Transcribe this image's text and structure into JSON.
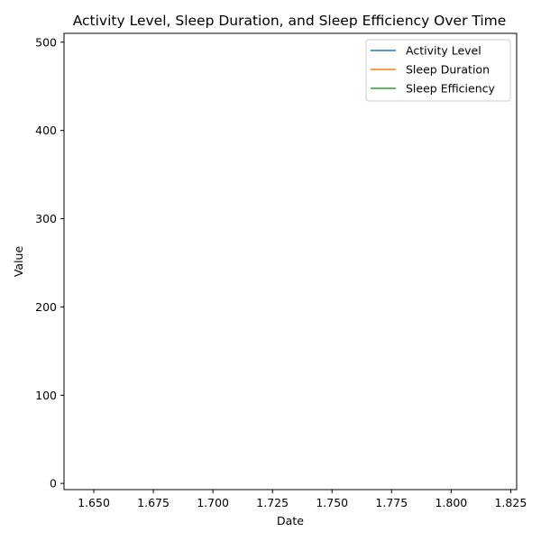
{
  "chart_data": {
    "type": "line",
    "title": "Activity Level, Sleep Duration, and Sleep Efficiency Over Time",
    "xlabel": "Date",
    "ylabel": "Value",
    "xlim": [
      1.6375,
      1.8275
    ],
    "ylim": [
      -7,
      510
    ],
    "x_ticks": [
      1.65,
      1.675,
      1.7,
      1.725,
      1.75,
      1.775,
      1.8,
      1.825
    ],
    "x_tick_labels": [
      "1.650",
      "1.675",
      "1.700",
      "1.725",
      "1.750",
      "1.775",
      "1.800",
      "1.825"
    ],
    "y_ticks": [
      0,
      100,
      200,
      300,
      400,
      500
    ],
    "y_tick_labels": [
      "0",
      "100",
      "200",
      "300",
      "400",
      "500"
    ],
    "legend_position": "upper right",
    "grid": false,
    "series": [
      {
        "name": "Activity Level",
        "color": "#1f77b4",
        "x": [],
        "values": []
      },
      {
        "name": "Sleep Duration",
        "color": "#ff7f0e",
        "x": [],
        "values": []
      },
      {
        "name": "Sleep Efficiency",
        "color": "#2ca02c",
        "x": [],
        "values": []
      }
    ]
  }
}
